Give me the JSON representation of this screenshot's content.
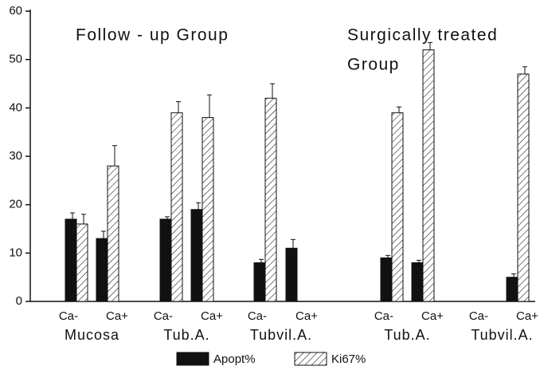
{
  "chart_data": {
    "type": "bar",
    "annotations": [
      "Follow - up Group",
      "Surgically treated",
      "Group"
    ],
    "categories": [
      "Ca-",
      "Ca+",
      "Ca-",
      "Ca+",
      "Ca-",
      "Ca+",
      "Ca-",
      "Ca+",
      "Ca-",
      "Ca+"
    ],
    "groups": [
      "Mucosa",
      "Tub.A.",
      "Tubvil.A.",
      "Tub.A.",
      "Tubvil.A."
    ],
    "series": [
      {
        "name": "Apopt%",
        "color": "#111111",
        "values": [
          17,
          13,
          17,
          19,
          8,
          11,
          9,
          8,
          null,
          5
        ],
        "errors": [
          1.3,
          1.5,
          0.5,
          1.4,
          0.7,
          1.8,
          0.5,
          0.5,
          null,
          0.7
        ]
      },
      {
        "name": "Ki67%",
        "color": "hatch",
        "values": [
          16,
          28,
          39,
          38,
          42,
          null,
          39,
          52,
          null,
          47
        ],
        "errors": [
          2,
          4.2,
          2.3,
          4.7,
          3,
          null,
          1.2,
          1.5,
          null,
          1.5
        ]
      }
    ],
    "ylim": [
      0,
      60
    ],
    "yticks": [
      0,
      10,
      20,
      30,
      40,
      50,
      60
    ]
  }
}
